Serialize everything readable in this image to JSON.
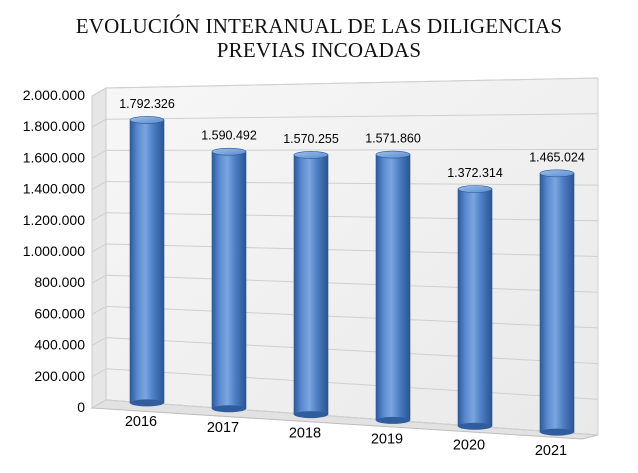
{
  "chart_data": {
    "type": "bar",
    "title_lines": [
      "EVOLUCIÓN INTERANUAL DE LAS DILIGENCIAS",
      "PREVIAS INCOADAS"
    ],
    "categories": [
      "2016",
      "2017",
      "2018",
      "2019",
      "2020",
      "2021"
    ],
    "values": [
      1792326,
      1590492,
      1570255,
      1571860,
      1372314,
      1465024
    ],
    "value_labels": [
      "1.792.326",
      "1.590.492",
      "1.570.255",
      "1.571.860",
      "1.372.314",
      "1.465.024"
    ],
    "y_ticks": [
      0,
      200000,
      400000,
      600000,
      800000,
      1000000,
      1200000,
      1400000,
      1600000,
      1800000,
      2000000
    ],
    "y_tick_labels": [
      "0",
      "200.000",
      "400.000",
      "600.000",
      "800.000",
      "1.000.000",
      "1.200.000",
      "1.400.000",
      "1.600.000",
      "1.800.000",
      "2.000.000"
    ],
    "ylim": [
      0,
      2000000
    ],
    "grid": true,
    "legend": "none",
    "style": "3d-cylinder",
    "colors": {
      "bar": "#4a7cc0",
      "bar_dark": "#2a5592",
      "bar_light": "#7fa8dc",
      "grid": "#d4d4d4",
      "wall": "#f2f2f2",
      "text": "#000000"
    }
  }
}
